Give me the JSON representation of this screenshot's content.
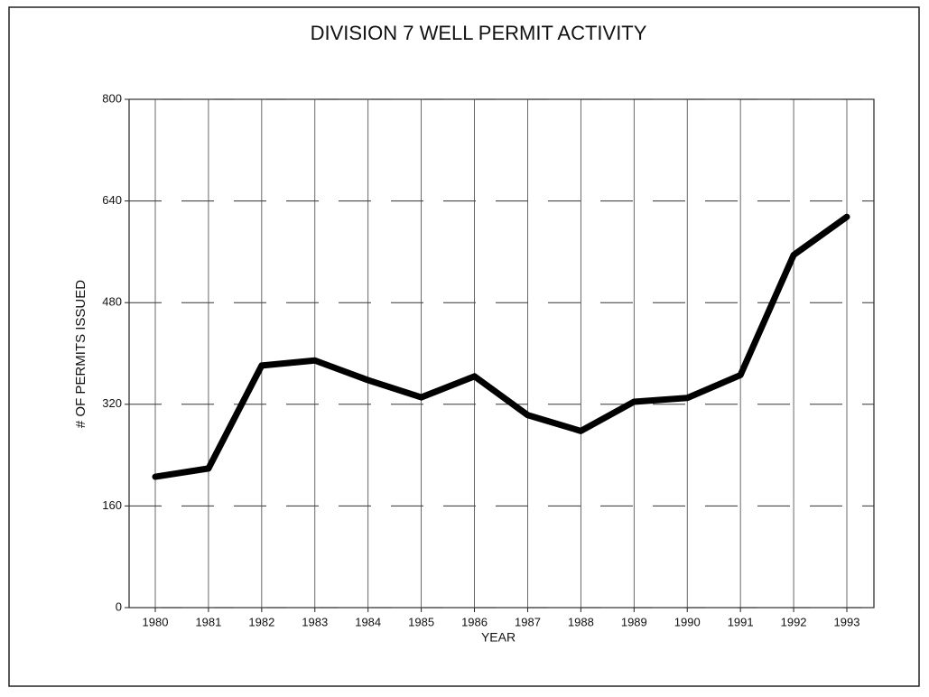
{
  "chart_data": {
    "type": "line",
    "title": "DIVISION 7 WELL PERMIT ACTIVITY",
    "x_label": "YEAR",
    "y_label": "# OF PERMITS ISSUED",
    "categories": [
      "1980",
      "1981",
      "1982",
      "1983",
      "1984",
      "1985",
      "1986",
      "1987",
      "1988",
      "1989",
      "1990",
      "1991",
      "1992",
      "1993"
    ],
    "series": [
      {
        "color": "#000000",
        "values": [
          206,
          219,
          381,
          389,
          358,
          331,
          364,
          303,
          278,
          324,
          330,
          366,
          555,
          615
        ]
      }
    ],
    "ylim": [
      0,
      800
    ],
    "yticks": [
      0,
      160,
      320,
      480,
      640,
      800
    ],
    "grid": true
  }
}
